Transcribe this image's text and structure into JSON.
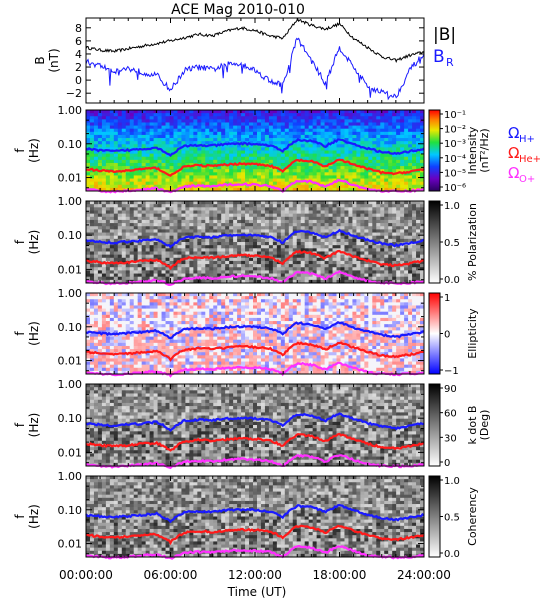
{
  "title": "ACE Mag 2010-010",
  "xlabel": "Time (UT)",
  "x_ticks": [
    "00:00:00",
    "06:00:00",
    "12:00:00",
    "18:00:00",
    "24:00:00"
  ],
  "freq_ticks": [
    "1.00",
    "0.10",
    "0.01"
  ],
  "freq_ylabel": "f",
  "freq_ylabel_unit": "(Hz)",
  "colors": {
    "field_total": "#000000",
    "field_radial": "#1a1aff",
    "h_plus": "#1a1aff",
    "he_plus": "#ff1a1a",
    "o_plus": "#ff30ff"
  },
  "chart_data": [
    {
      "type": "line",
      "panel": "magnetic-field",
      "ylabel": "B",
      "ylabel_unit": "(nT)",
      "ylim": [
        -3.5,
        9.5
      ],
      "yticks": [
        "8",
        "6",
        "4",
        "2",
        "0",
        "−2"
      ],
      "xlim_hours": [
        0,
        24
      ],
      "series": [
        {
          "name": "|B|",
          "key": "Btot",
          "x": [
            0,
            1,
            2,
            3,
            4,
            5,
            6,
            7,
            8,
            9,
            10,
            11,
            12,
            13,
            14,
            15,
            16,
            17,
            18,
            19,
            20,
            21,
            22,
            23,
            24
          ],
          "values": [
            5.0,
            4.6,
            4.4,
            4.8,
            5.2,
            5.6,
            6.0,
            6.5,
            7.0,
            6.8,
            7.5,
            8.0,
            7.6,
            6.8,
            6.4,
            9.3,
            8.4,
            7.8,
            8.6,
            6.4,
            5.0,
            3.6,
            3.0,
            3.8,
            4.3
          ]
        },
        {
          "name": "B",
          "name_sub": "R",
          "key": "BR",
          "x": [
            0,
            1,
            2,
            3,
            4,
            5,
            6,
            7,
            8,
            9,
            10,
            11,
            12,
            13,
            14,
            15,
            16,
            17,
            18,
            19,
            20,
            21,
            22,
            23,
            24
          ],
          "values": [
            2.8,
            2.2,
            1.4,
            1.8,
            1.2,
            0.8,
            -1.5,
            1.5,
            2.0,
            1.6,
            2.4,
            2.6,
            1.5,
            0.0,
            -0.8,
            6.5,
            3.0,
            -0.5,
            5.0,
            2.0,
            -1.0,
            -1.8,
            -2.6,
            1.6,
            4.0
          ]
        }
      ]
    },
    {
      "type": "heatmap",
      "panel": "intensity",
      "ylabel": "f (Hz)",
      "ylim": [
        0.004,
        1.0
      ],
      "y_scale": "log",
      "colorbar_label": "Intensity",
      "colorbar_unit": "(nT²/Hz)",
      "colorbar_ticks": [
        "10⁻¹",
        "10⁻²",
        "10⁻³",
        "10⁻⁴",
        "10⁻⁵",
        "10⁻⁶"
      ],
      "colorbar_scale": "rainbow",
      "overlay_legend": [
        {
          "label": "Ω",
          "sub": "H+",
          "color": "#1a1aff"
        },
        {
          "label": "Ω",
          "sub": "He+",
          "color": "#ff1a1a"
        },
        {
          "label": "Ω",
          "sub": "O+",
          "color": "#ff30ff"
        }
      ]
    },
    {
      "type": "heatmap",
      "panel": "polarization",
      "ylabel": "f (Hz)",
      "ylim": [
        0.004,
        1.0
      ],
      "y_scale": "log",
      "colorbar_label": "% Polarization",
      "colorbar_ticks": [
        "1.0",
        "0.5",
        "0.0"
      ],
      "colorbar_scale": "grayscale"
    },
    {
      "type": "heatmap",
      "panel": "ellipticity",
      "ylabel": "f (Hz)",
      "ylim": [
        0.004,
        1.0
      ],
      "y_scale": "log",
      "colorbar_label": "Ellipticity",
      "colorbar_ticks": [
        "1",
        "0",
        "−1"
      ],
      "colorbar_scale": "blue-white-red"
    },
    {
      "type": "heatmap",
      "panel": "k-dot-b",
      "ylabel": "f (Hz)",
      "ylim": [
        0.004,
        1.0
      ],
      "y_scale": "log",
      "colorbar_label": "k dot B",
      "colorbar_unit": "(Deg)",
      "colorbar_ticks": [
        "90",
        "60",
        "30",
        "0"
      ],
      "colorbar_scale": "grayscale"
    },
    {
      "type": "heatmap",
      "panel": "coherency",
      "ylabel": "f (Hz)",
      "ylim": [
        0.004,
        1.0
      ],
      "y_scale": "log",
      "colorbar_label": "Coherency",
      "colorbar_ticks": [
        "1.0",
        "0.5",
        "0.0"
      ],
      "colorbar_scale": "grayscale"
    }
  ],
  "gyrofrequency_lines_hz": {
    "x_hours": [
      0,
      1,
      2,
      3,
      4,
      5,
      6,
      7,
      8,
      9,
      10,
      11,
      12,
      13,
      14,
      15,
      16,
      17,
      18,
      19,
      20,
      21,
      22,
      23,
      24
    ],
    "H+": [
      0.07,
      0.064,
      0.06,
      0.065,
      0.07,
      0.077,
      0.045,
      0.085,
      0.09,
      0.088,
      0.097,
      0.102,
      0.098,
      0.09,
      0.06,
      0.13,
      0.12,
      0.085,
      0.135,
      0.095,
      0.072,
      0.057,
      0.05,
      0.06,
      0.07
    ],
    "He+": [
      0.018,
      0.016,
      0.015,
      0.016,
      0.018,
      0.019,
      0.011,
      0.021,
      0.023,
      0.022,
      0.024,
      0.026,
      0.025,
      0.023,
      0.015,
      0.033,
      0.03,
      0.021,
      0.034,
      0.024,
      0.018,
      0.014,
      0.013,
      0.015,
      0.018
    ],
    "O+": [
      0.0045,
      0.004,
      0.0038,
      0.0041,
      0.0044,
      0.0048,
      0.0036,
      0.0053,
      0.0057,
      0.0055,
      0.0061,
      0.0064,
      0.0061,
      0.0057,
      0.004,
      0.0082,
      0.0075,
      0.0053,
      0.0085,
      0.006,
      0.0045,
      0.004,
      0.0039,
      0.004,
      0.0045
    ]
  }
}
